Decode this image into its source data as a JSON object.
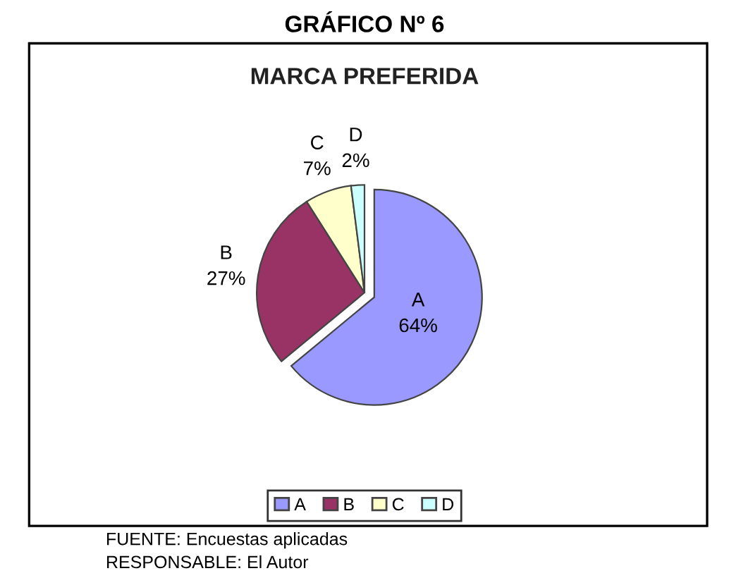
{
  "chart_data": {
    "type": "pie",
    "title": "GRÁFICO Nº 6",
    "subtitle": "MARCA PREFERIDA",
    "categories": [
      "A",
      "B",
      "C",
      "D"
    ],
    "values": [
      64,
      27,
      7,
      2
    ],
    "colors": [
      "#9999ff",
      "#993366",
      "#ffffcc",
      "#ccffff"
    ],
    "legend": "bottom",
    "value_labels": [
      "64%",
      "27%",
      "7%",
      "2%"
    ],
    "annotations": [
      "FUENTE: Encuestas aplicadas",
      "RESPONSABLE: El Autor"
    ]
  }
}
